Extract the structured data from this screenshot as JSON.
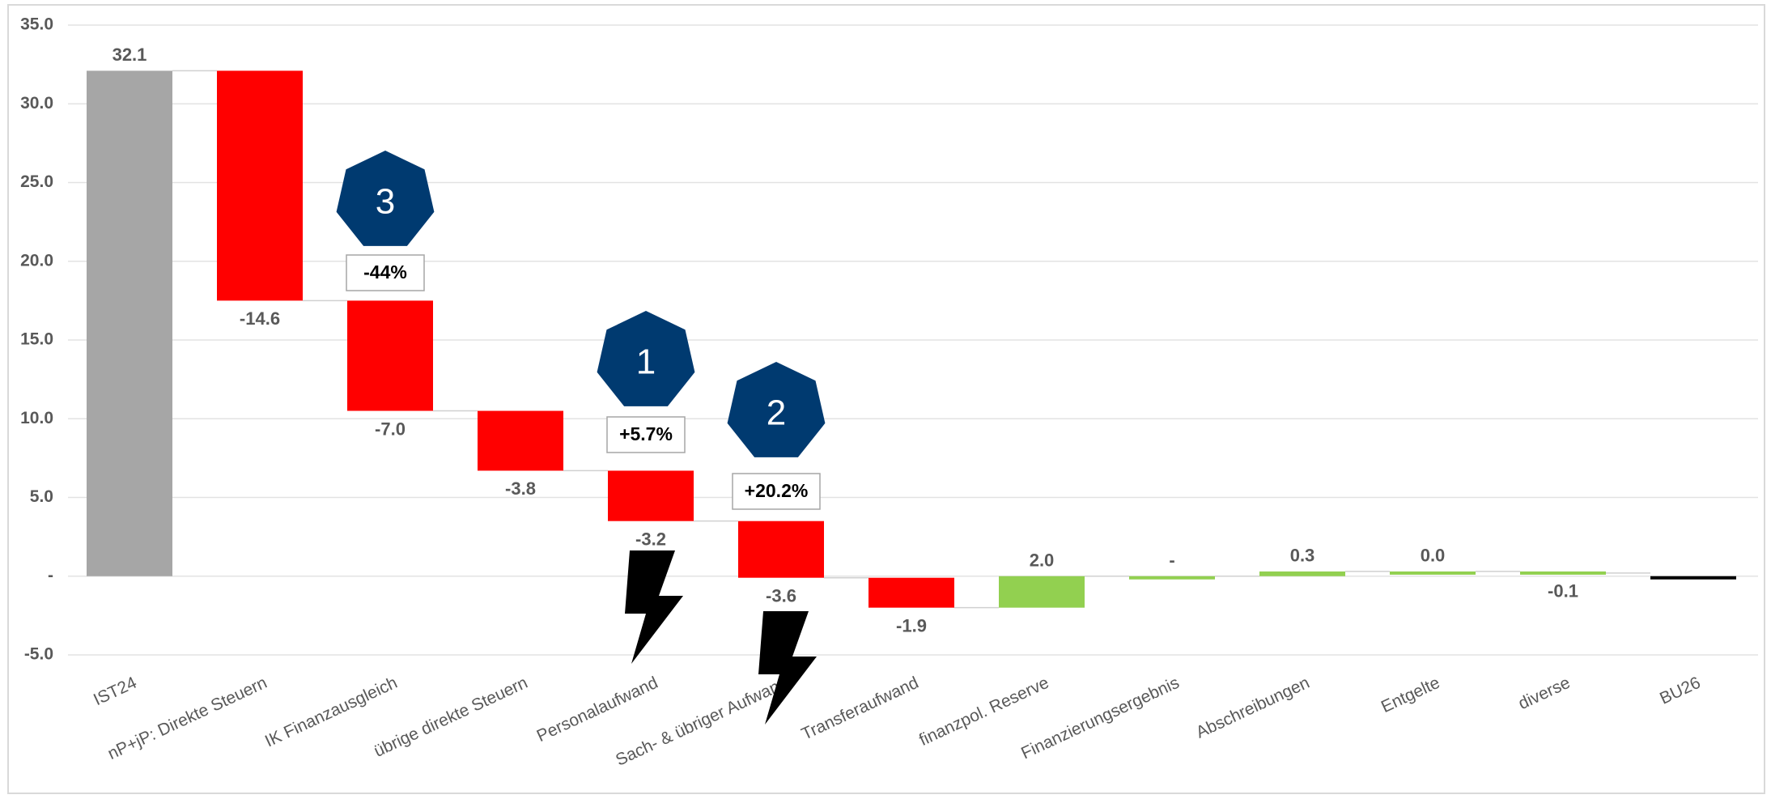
{
  "chart_data": {
    "type": "waterfall",
    "categories": [
      "IST24",
      "nP+jP: Direkte Steuern",
      "IK Finanzausgleich",
      "übrige direkte Steuern",
      "Personalaufwand",
      "Sach- & übriger Aufwand",
      "Transferaufwand",
      "finanzpol. Reserve",
      "Finanzierungsergebnis",
      "Abschreibungen",
      "Entgelte",
      "diverse",
      "BU26"
    ],
    "measure": [
      "total",
      "relative",
      "relative",
      "relative",
      "relative",
      "relative",
      "relative",
      "relative",
      "relative",
      "relative",
      "relative",
      "relative",
      "total"
    ],
    "values": [
      32.1,
      -14.6,
      -7.0,
      -3.8,
      -3.2,
      -3.6,
      -1.9,
      2.0,
      0,
      0.3,
      0.0,
      -0.1,
      -0.2
    ],
    "value_labels": [
      "32.1",
      "-14.6",
      "-7.0",
      "-3.8",
      "-3.2",
      "-3.6",
      "-1.9",
      "2.0",
      "-",
      "0.3",
      "0.0",
      "-0.1",
      null
    ],
    "colors": [
      "#a6a6a6",
      "#ff0000",
      "#ff0000",
      "#ff0000",
      "#ff0000",
      "#ff0000",
      "#ff0000",
      "#92d050",
      "#92d050",
      "#92d050",
      "#92d050",
      "#92d050",
      "#000000"
    ],
    "ylim": [
      -5,
      35
    ],
    "yticks": [
      {
        "value": -5,
        "label": "-5.0"
      },
      {
        "value": 0,
        "label": "-"
      },
      {
        "value": 5,
        "label": "5.0"
      },
      {
        "value": 10,
        "label": "10.0"
      },
      {
        "value": 15,
        "label": "15.0"
      },
      {
        "value": 20,
        "label": "20.0"
      },
      {
        "value": 25,
        "label": "25.0"
      },
      {
        "value": 30,
        "label": "30.0"
      },
      {
        "value": 35,
        "label": "35.0"
      }
    ],
    "grid": true,
    "annotations": [
      {
        "badge": "3",
        "text": "-44%"
      },
      {
        "badge": "1",
        "text": "+5.7%"
      },
      {
        "badge": "2",
        "text": "+20.2%"
      }
    ]
  }
}
